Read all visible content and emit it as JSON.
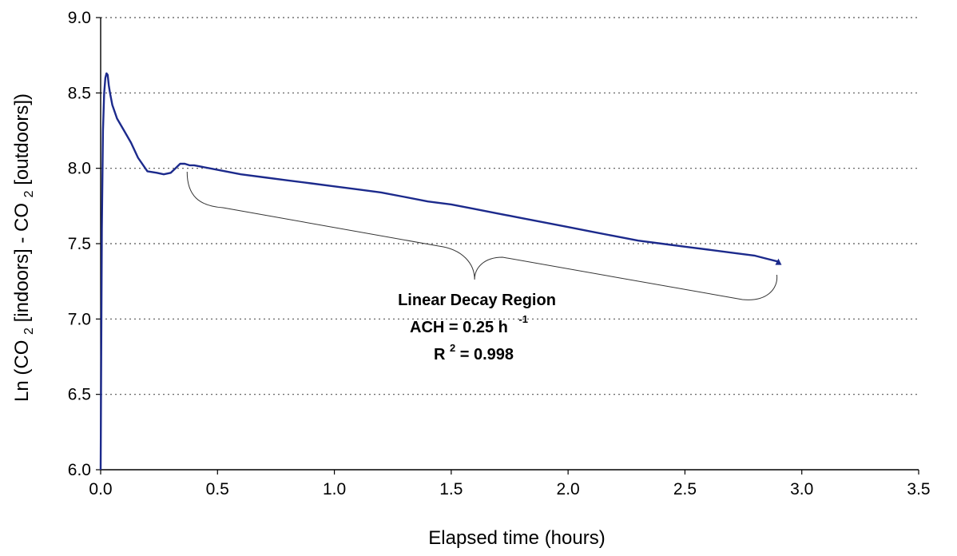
{
  "chart_data": {
    "type": "line",
    "xlabel": "Elapsed time (hours)",
    "ylabel": {
      "part1": "Ln (CO",
      "sub1": "2",
      "part2": "[indoors] - CO",
      "sub2": "2",
      "part3": "[outdoors])"
    },
    "xlim": [
      0.0,
      3.5
    ],
    "ylim": [
      6.0,
      9.0
    ],
    "x_ticks": [
      "0.0",
      "0.5",
      "1.0",
      "1.5",
      "2.0",
      "2.5",
      "3.0",
      "3.5"
    ],
    "y_ticks": [
      "6.0",
      "6.5",
      "7.0",
      "7.5",
      "8.0",
      "8.5",
      "9.0"
    ],
    "grid": "horizontal dotted",
    "line_color": "#1c2a8c",
    "series": [
      {
        "x": [
          0.0,
          0.005,
          0.01,
          0.015,
          0.02,
          0.025,
          0.03,
          0.035,
          0.04,
          0.05,
          0.07,
          0.1,
          0.13,
          0.16,
          0.2,
          0.24,
          0.27,
          0.3,
          0.32,
          0.34,
          0.36,
          0.38,
          0.4,
          0.5,
          0.6,
          0.7,
          0.8,
          0.9,
          1.0,
          1.1,
          1.2,
          1.3,
          1.4,
          1.5,
          1.6,
          1.7,
          1.8,
          1.9,
          2.0,
          2.1,
          2.2,
          2.3,
          2.4,
          2.5,
          2.6,
          2.7,
          2.8,
          2.85,
          2.9
        ],
        "y": [
          6.0,
          7.6,
          8.25,
          8.5,
          8.6,
          8.63,
          8.62,
          8.55,
          8.5,
          8.42,
          8.33,
          8.25,
          8.17,
          8.07,
          7.98,
          7.97,
          7.96,
          7.97,
          8.0,
          8.03,
          8.03,
          8.02,
          8.02,
          7.99,
          7.96,
          7.94,
          7.92,
          7.9,
          7.88,
          7.86,
          7.84,
          7.81,
          7.78,
          7.76,
          7.73,
          7.7,
          7.67,
          7.64,
          7.61,
          7.58,
          7.55,
          7.52,
          7.5,
          7.48,
          7.46,
          7.44,
          7.42,
          7.4,
          7.38
        ]
      }
    ],
    "annotation": {
      "line1": "Linear Decay Region",
      "line2": "ACH = 0.25 h",
      "line2_sup": "-1",
      "line3_pre": "R",
      "line3_sup": "2",
      "line3_post": " = 0.998",
      "brace_x_start": 0.37,
      "brace_x_end": 2.9,
      "brace_tip_x": 1.6
    }
  }
}
